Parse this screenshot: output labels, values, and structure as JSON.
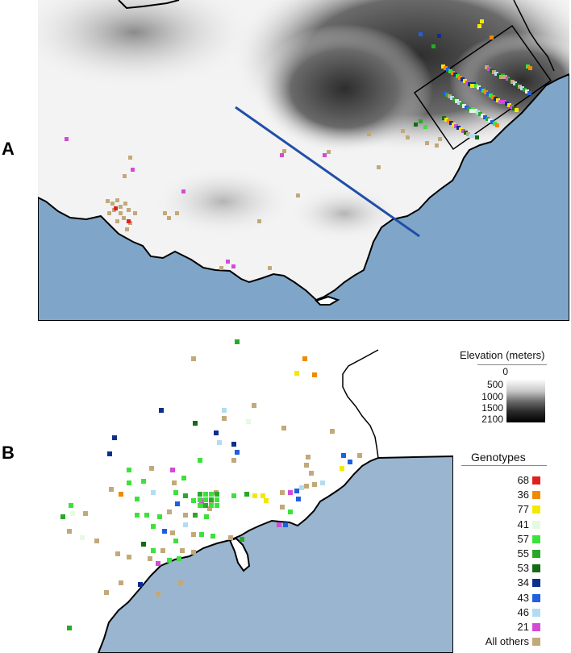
{
  "panels": {
    "a_label": "A",
    "b_label": "B"
  },
  "legend": {
    "elevation_title": "Elevation (meters)",
    "elevation_ticks": [
      "0",
      "500",
      "1000",
      "1500",
      "2100"
    ],
    "elevation_colors": [
      "#f0f0f0",
      "#c8c8c8",
      "#707070",
      "#2a2a2a",
      "#000000"
    ],
    "genotypes_title": "Genotypes",
    "genotypes": [
      {
        "label": "68",
        "color": "#e0201c"
      },
      {
        "label": "36",
        "color": "#f08a00"
      },
      {
        "label": "77",
        "color": "#f5e800"
      },
      {
        "label": "41",
        "color": "#e4fbe0"
      },
      {
        "label": "57",
        "color": "#3ce23c"
      },
      {
        "label": "55",
        "color": "#2aa82a"
      },
      {
        "label": "53",
        "color": "#156b15"
      },
      {
        "label": "34",
        "color": "#0d2f8c"
      },
      {
        "label": "43",
        "color": "#1f5fe0"
      },
      {
        "label": "46",
        "color": "#b3dcf2"
      },
      {
        "label": "21",
        "color": "#d24bd6"
      },
      {
        "label": "All others",
        "color": "#c2a97a"
      }
    ]
  },
  "colors": {
    "sea": "#7fa6c9",
    "coast": "#000000",
    "transect": "#1f4fa8"
  }
}
